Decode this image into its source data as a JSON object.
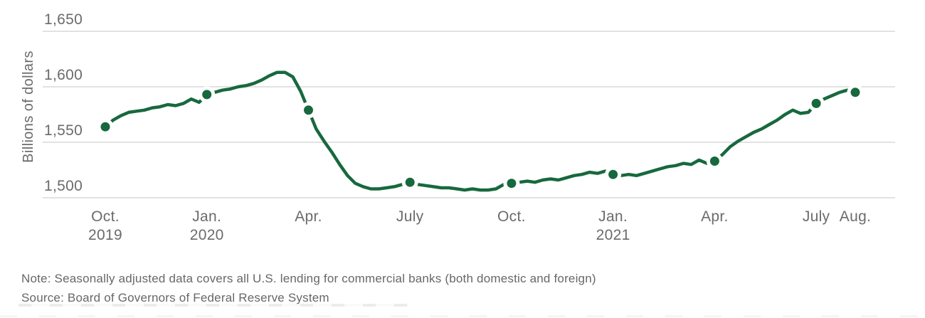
{
  "colors": {
    "line": "#17693D",
    "grid": "#D9D9D9",
    "axis_text": "#6B6B6B",
    "footer_text": "#676767",
    "background": "#FFFFFF"
  },
  "chart_data": {
    "type": "line",
    "title": "",
    "xlabel": "",
    "ylabel": "Billions of dollars",
    "ylim": [
      1500,
      1650
    ],
    "grid": true,
    "legend": "none",
    "y_ticks": [
      {
        "value": 1650,
        "label": "1,650"
      },
      {
        "value": 1600,
        "label": "1,600"
      },
      {
        "value": 1550,
        "label": "1,550"
      },
      {
        "value": 1500,
        "label": "1,500"
      }
    ],
    "x_ticks": [
      {
        "index": 0,
        "label": "Oct.",
        "year": "2019"
      },
      {
        "index": 13,
        "label": "Jan.",
        "year": "2020"
      },
      {
        "index": 26,
        "label": "Apr.",
        "year": ""
      },
      {
        "index": 39,
        "label": "July",
        "year": ""
      },
      {
        "index": 52,
        "label": "Oct.",
        "year": ""
      },
      {
        "index": 65,
        "label": "Jan.",
        "year": "2021"
      },
      {
        "index": 78,
        "label": "Apr.",
        "year": ""
      },
      {
        "index": 91,
        "label": "July",
        "year": ""
      },
      {
        "index": 96,
        "label": "Aug.",
        "year": ""
      }
    ],
    "values": [
      1564,
      1570,
      1574,
      1577,
      1578,
      1579,
      1581,
      1582,
      1584,
      1583,
      1585,
      1589,
      1586,
      1593,
      1595,
      1597,
      1598,
      1600,
      1601,
      1603,
      1606,
      1610,
      1613,
      1613,
      1609,
      1596,
      1579,
      1562,
      1551,
      1541,
      1530,
      1520,
      1513,
      1510,
      1508,
      1508,
      1509,
      1510,
      1512,
      1514,
      1512,
      1511,
      1510,
      1509,
      1509,
      1508,
      1507,
      1508,
      1507,
      1507,
      1508,
      1512,
      1513,
      1514,
      1515,
      1514,
      1516,
      1517,
      1516,
      1518,
      1520,
      1521,
      1523,
      1522,
      1524,
      1521,
      1520,
      1521,
      1520,
      1522,
      1524,
      1526,
      1528,
      1529,
      1531,
      1530,
      1534,
      1531,
      1533,
      1539,
      1546,
      1551,
      1555,
      1559,
      1562,
      1566,
      1570,
      1575,
      1579,
      1576,
      1577,
      1585,
      1589,
      1592,
      1595,
      1597,
      1595
    ],
    "marker_indices": [
      0,
      13,
      26,
      39,
      52,
      65,
      78,
      91,
      96
    ]
  },
  "footer": {
    "note": "Note: Seasonally adjusted data covers all U.S. lending for commercial banks (both domestic and foreign)",
    "source": "Source: Board of Governors of Federal Reserve System"
  }
}
